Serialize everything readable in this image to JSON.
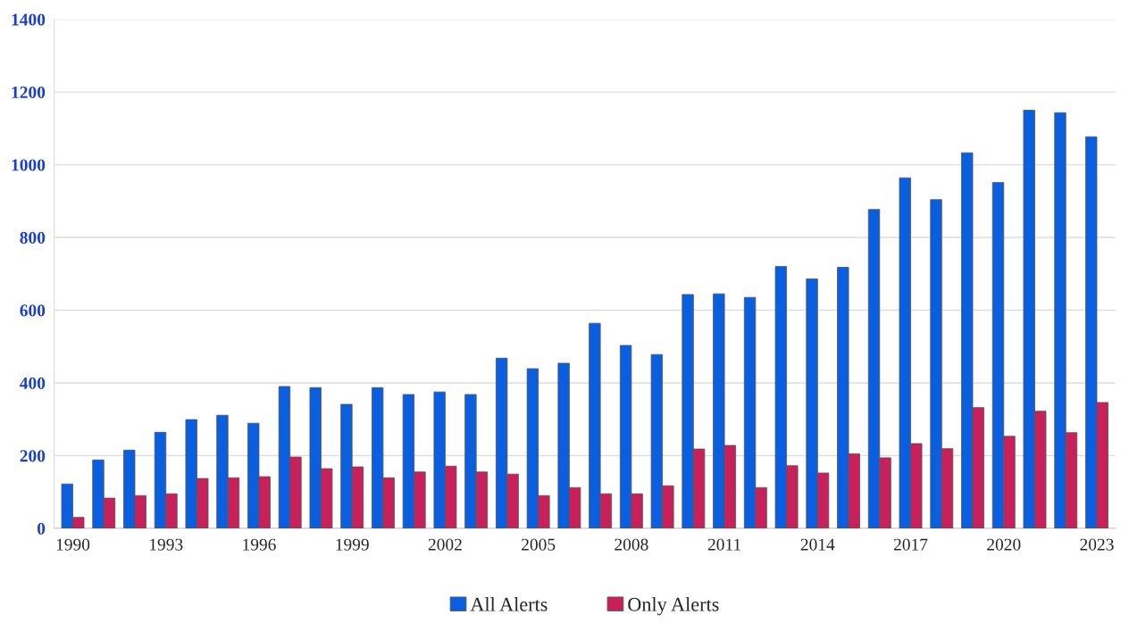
{
  "chart_data": {
    "type": "bar",
    "categories": [
      "1990",
      null,
      null,
      "1993",
      null,
      null,
      "1996",
      null,
      null,
      "1999",
      null,
      null,
      "2002",
      null,
      null,
      "2005",
      null,
      null,
      "2008",
      null,
      null,
      "2011",
      null,
      null,
      "2014",
      null,
      null,
      "2017",
      null,
      null,
      "2020",
      null,
      null,
      "2023"
    ],
    "series": [
      {
        "name": "All Alerts",
        "color": "#0a5fe0",
        "values": [
          122,
          188,
          215,
          264,
          299,
          311,
          289,
          390,
          387,
          341,
          387,
          368,
          375,
          368,
          468,
          439,
          454,
          564,
          503,
          478,
          643,
          645,
          635,
          720,
          686,
          718,
          877,
          964,
          904,
          1033,
          951,
          1150,
          1143,
          1077
        ]
      },
      {
        "name": "Only Alerts",
        "color": "#c8205a",
        "values": [
          30,
          83,
          90,
          95,
          137,
          139,
          142,
          196,
          164,
          169,
          139,
          155,
          171,
          155,
          149,
          90,
          112,
          95,
          95,
          117,
          218,
          228,
          112,
          172,
          152,
          205,
          194,
          233,
          219,
          332,
          253,
          322,
          263,
          346
        ]
      }
    ],
    "ylim": [
      0,
      1400
    ],
    "yticks": [
      0,
      200,
      400,
      600,
      800,
      1000,
      1200,
      1400
    ],
    "grid": "y",
    "legend": "bottom"
  }
}
